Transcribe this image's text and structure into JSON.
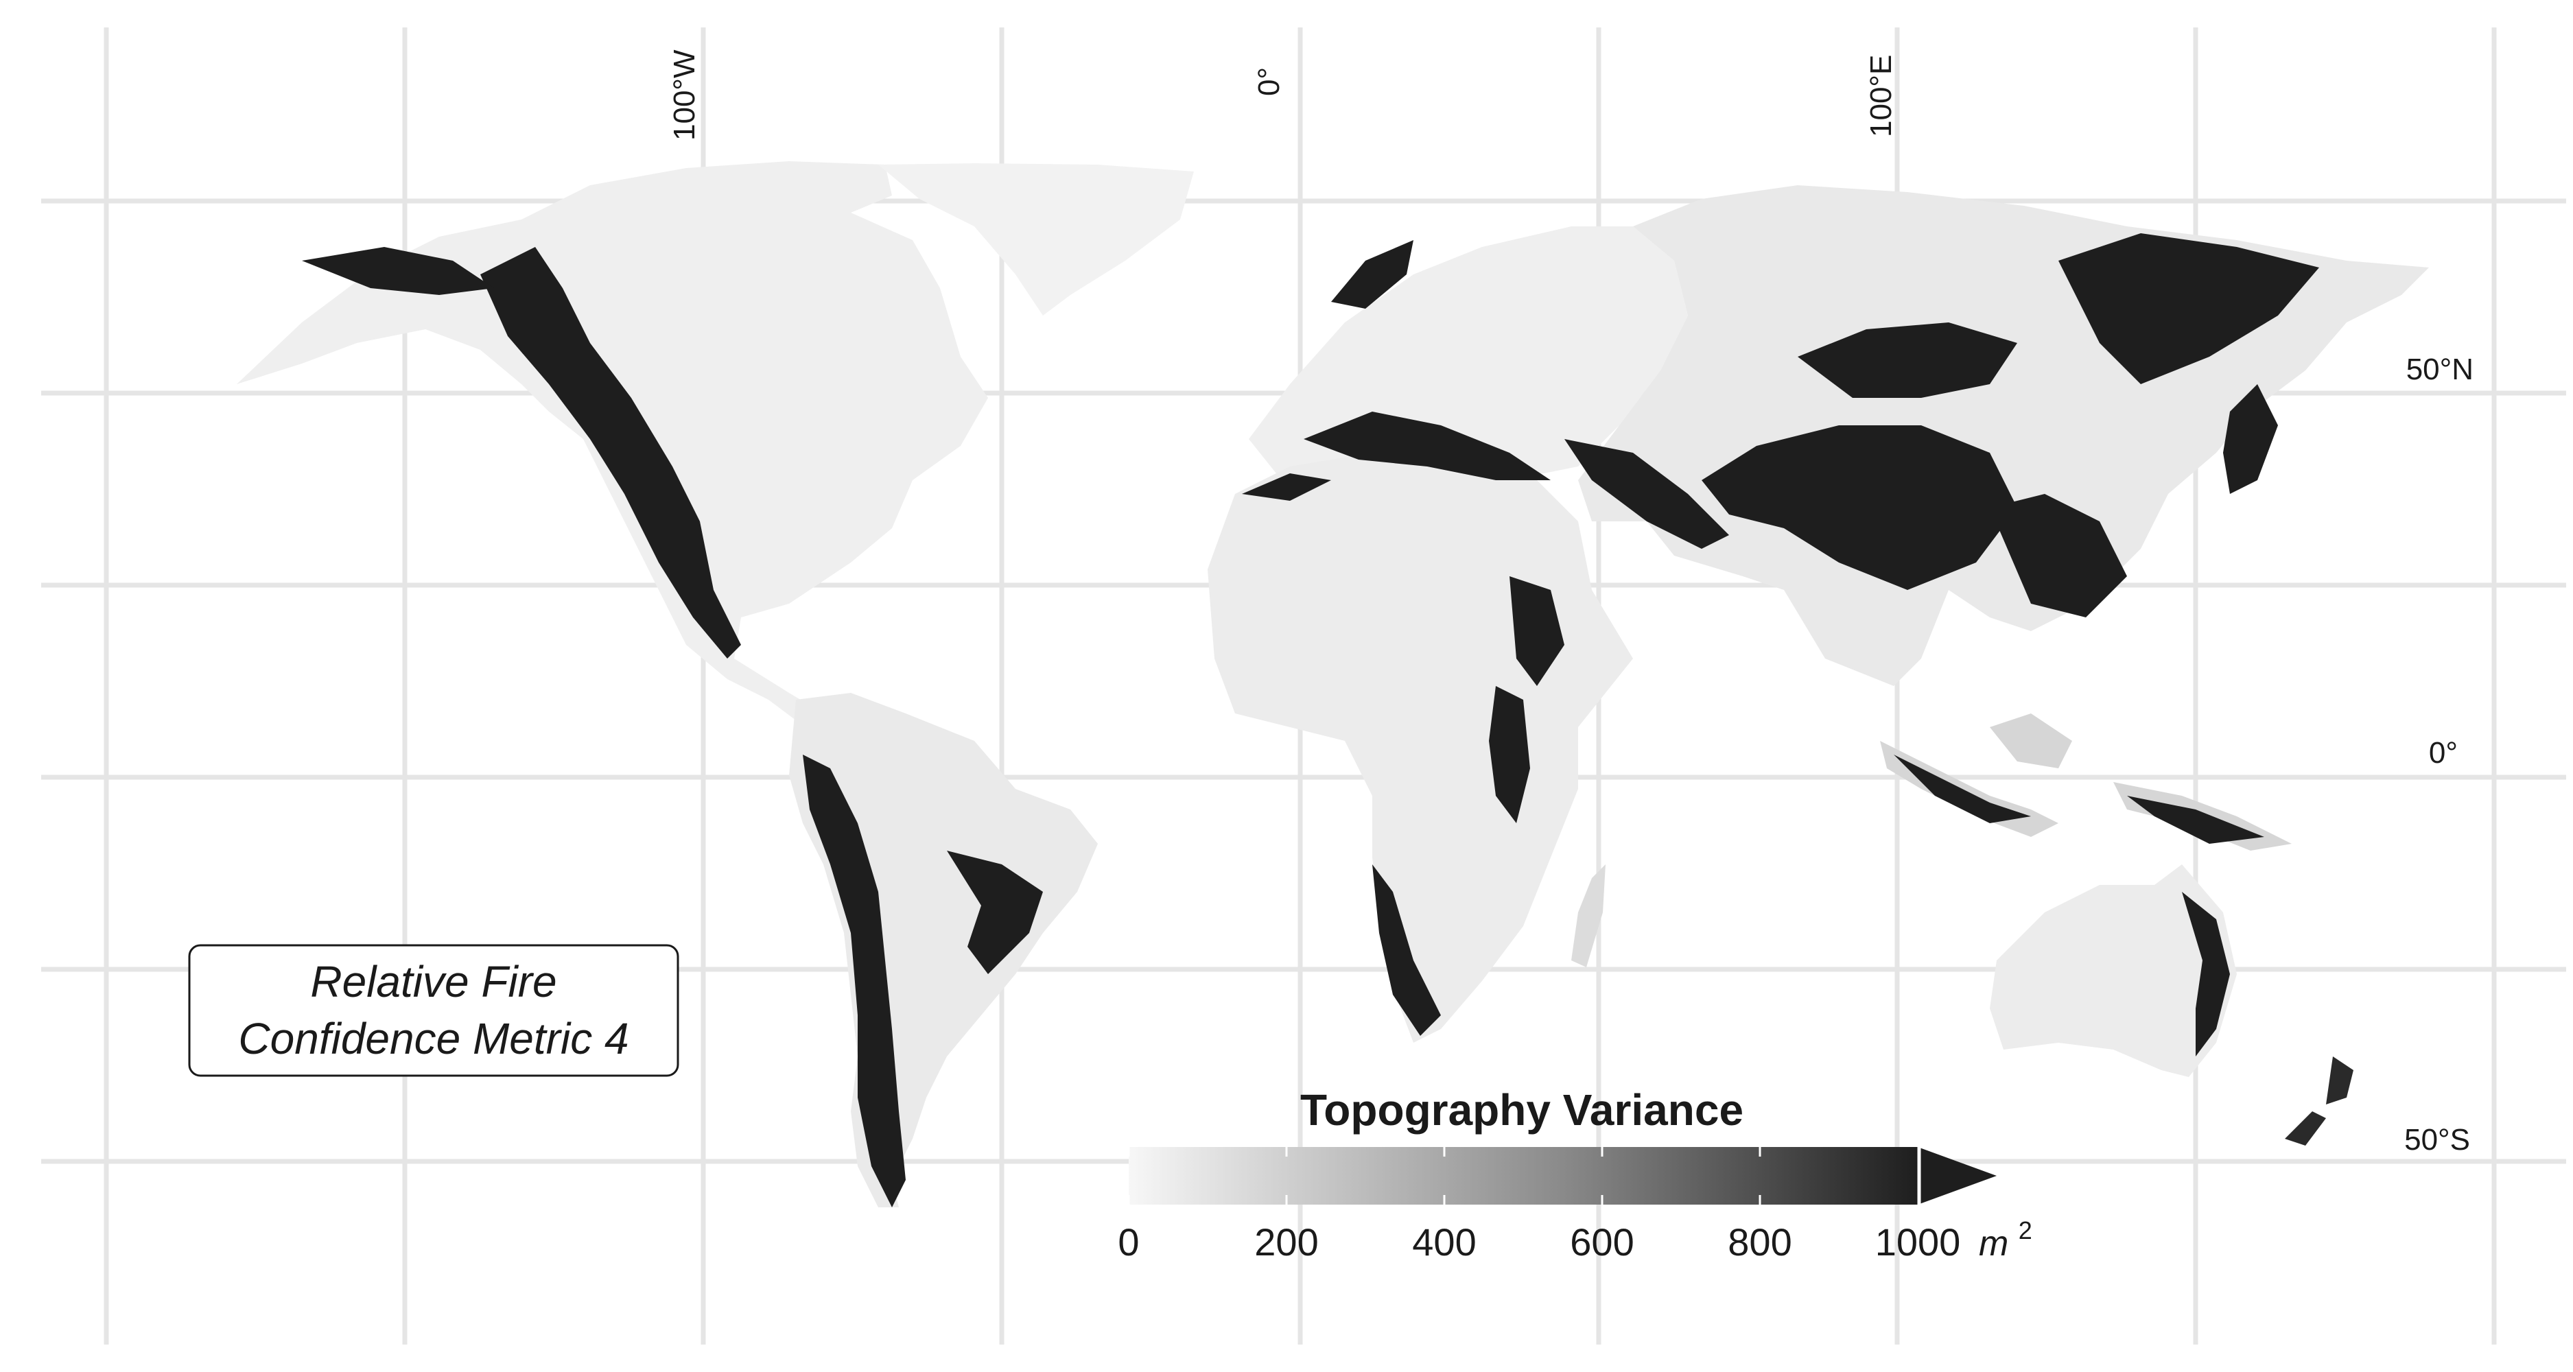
{
  "map": {
    "lon_labels": [
      "100°W",
      "0°",
      "100°E"
    ],
    "lat_labels": [
      "50°N",
      "0°",
      "50°S"
    ],
    "graticule": true
  },
  "annotation": {
    "line1": "Relative Fire",
    "line2": "Confidence Metric 4"
  },
  "legend": {
    "title": "Topography Variance",
    "ticks": [
      "0",
      "200",
      "400",
      "600",
      "800",
      "1000"
    ],
    "unit_base": "m",
    "unit_exp": "2",
    "min": 0,
    "max": 1000,
    "extend": "max",
    "colors": {
      "low": "#f7f7f7",
      "high": "#1e1e1e"
    }
  },
  "colors": {
    "land_low": "#eeeeee",
    "land_high": "#1c1c1c",
    "grid": "#e5e5e5"
  }
}
